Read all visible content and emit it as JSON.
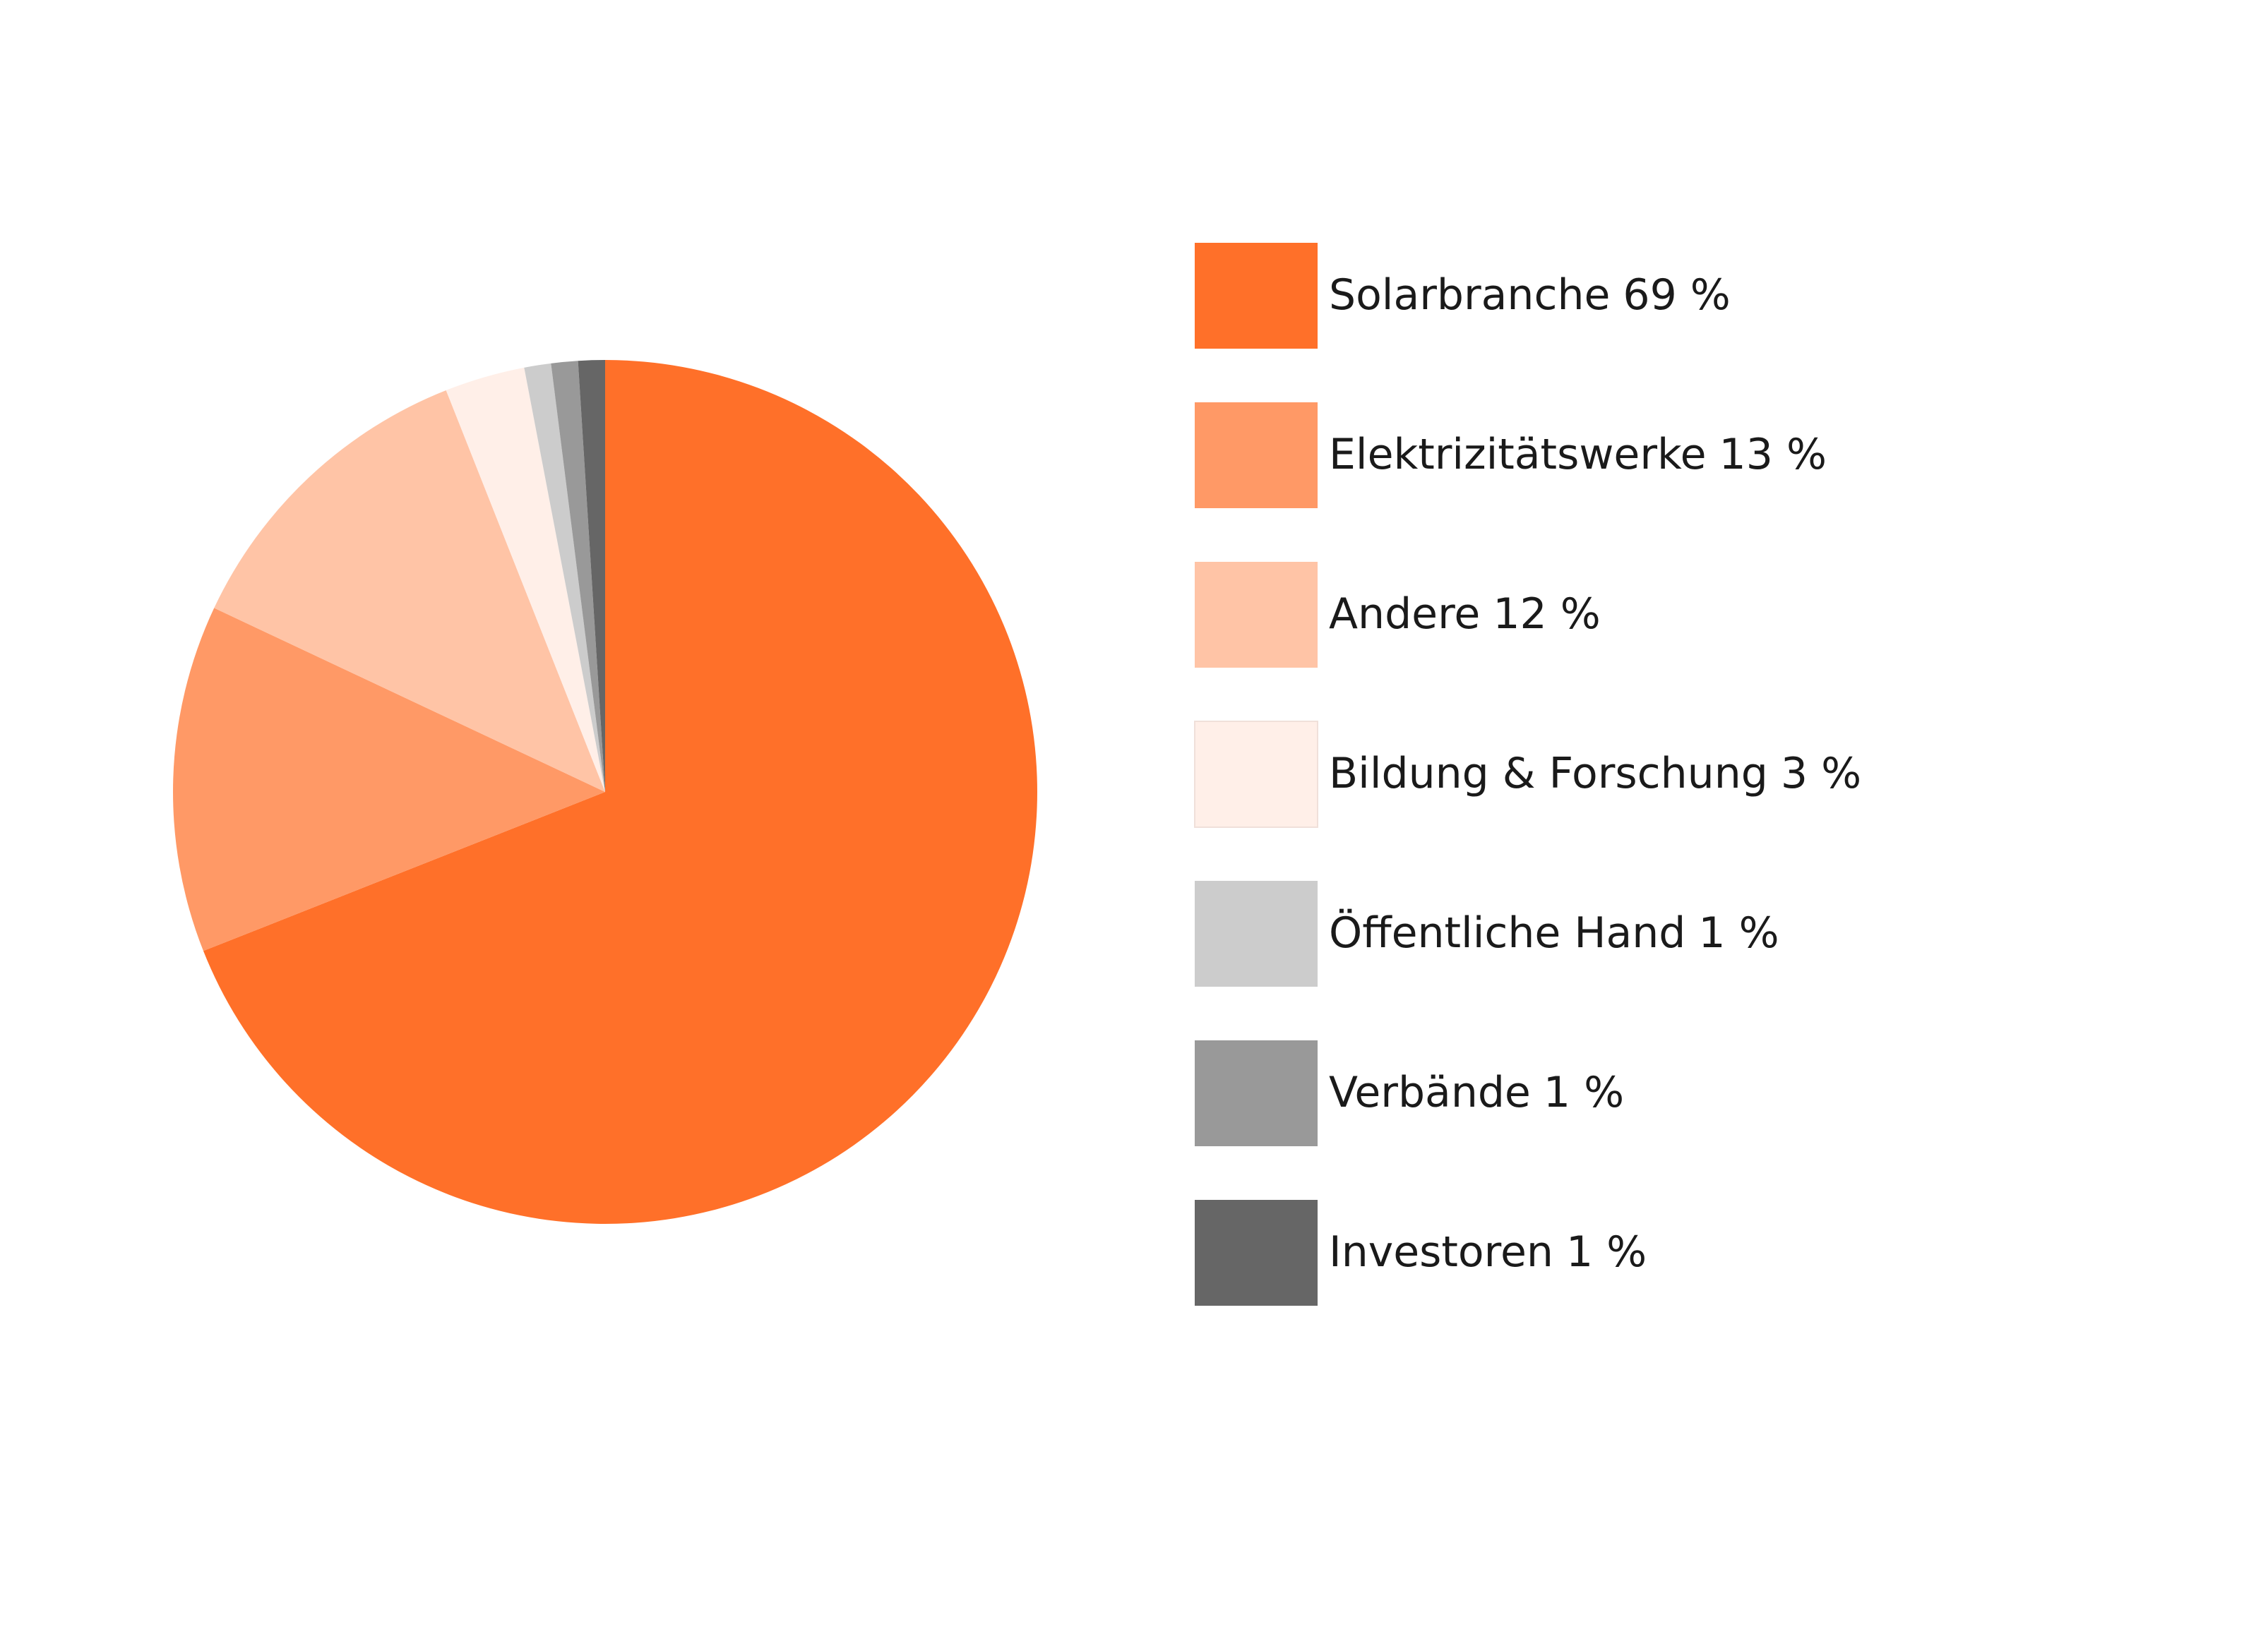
{
  "chart_data": {
    "type": "pie",
    "categories": [
      "Solarbranche",
      "Elektrizitätswerke",
      "Andere",
      "Bildung & Forschung",
      "Öffentliche Hand",
      "Verbände",
      "Investoren"
    ],
    "values": [
      69,
      13,
      12,
      3,
      1,
      1,
      1
    ],
    "value_labels": [
      "69 %",
      "13 %",
      "12 %",
      "3 %",
      "1 %",
      "1 %",
      "1 %"
    ],
    "colors": [
      "#ff7029",
      "#ff9966",
      "#ffc4a6",
      "#ffefe8",
      "#cccccc",
      "#999999",
      "#666666"
    ],
    "legend": "right"
  }
}
